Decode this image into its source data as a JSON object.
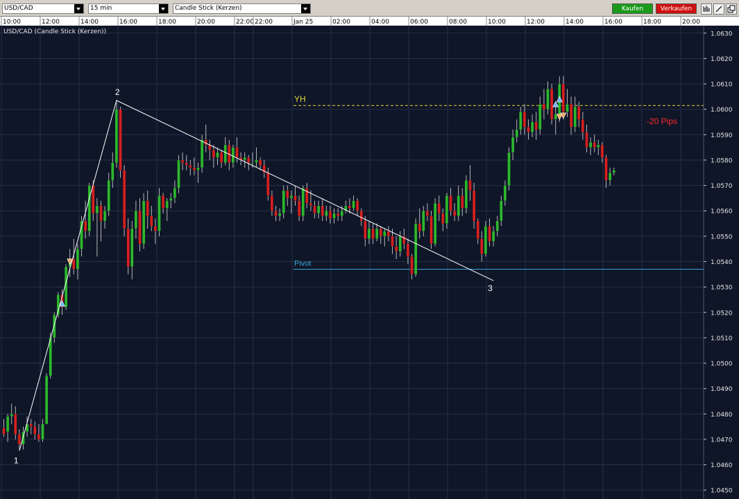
{
  "toolbar": {
    "symbol": "USD/CAD",
    "interval": "15 min",
    "chart_type": "Candle Stick (Kerzen)",
    "buy_label": "Kaufen",
    "sell_label": "Verkaufen",
    "buy_color": "#1a9a1a",
    "sell_color": "#d01010",
    "icons": [
      "bars-icon",
      "draw-line-icon",
      "detach-window-icon"
    ]
  },
  "chart_data": {
    "type": "candlestick",
    "title": "USD/CAD (Candle Stick (Kerzen))",
    "time_labels": [
      "10:00",
      "12:00",
      "14:00",
      "16:00",
      "18:00",
      "20:00",
      "22:00",
      "22:00",
      "Jan 25",
      "02:00",
      "04:00",
      "06:00",
      "08:00",
      "10:00",
      "12:00",
      "14:00",
      "16:00",
      "18:00",
      "20:00"
    ],
    "y_ticks": [
      1.045,
      1.046,
      1.047,
      1.048,
      1.049,
      1.05,
      1.051,
      1.052,
      1.053,
      1.054,
      1.055,
      1.056,
      1.057,
      1.058,
      1.059,
      1.06,
      1.061,
      1.062,
      1.063
    ],
    "ylim": [
      1.04465,
      1.06365
    ],
    "grid": true,
    "colors": {
      "up": "#2db82d",
      "down": "#d62020",
      "background": "#0f1628",
      "grid": "#253048"
    },
    "legs": [
      {
        "label": "1",
        "x_index": 4,
        "price": 1.04655
      },
      {
        "label": "2",
        "x_index": 29,
        "price": 1.06035
      },
      {
        "label": "3",
        "x_index": 126,
        "price": 1.05325
      }
    ],
    "levels": [
      {
        "label": "YH",
        "price": 1.06015,
        "color": "#e8d83a",
        "style": "dashed"
      },
      {
        "label": "Pivot",
        "price": 1.0537,
        "color": "#3aa6d6",
        "style": "solid"
      }
    ],
    "annotations": [
      {
        "text": "-20 Pips",
        "color": "#ff2a2a"
      }
    ],
    "markers": [
      {
        "type": "buy",
        "x_index": 15,
        "price": 1.05235
      },
      {
        "type": "sell",
        "x_index": 17,
        "price": 1.054
      },
      {
        "type": "buy",
        "x_index": 142,
        "price": 1.0602
      },
      {
        "type": "buy",
        "x_index": 143,
        "price": 1.0604
      },
      {
        "type": "sell",
        "x_index": 143,
        "price": 1.0597
      },
      {
        "type": "sell",
        "x_index": 144,
        "price": 1.05975
      }
    ],
    "candles": [
      [
        1.04745,
        1.0478,
        1.0471,
        1.0472
      ],
      [
        1.0473,
        1.048,
        1.0469,
        1.0479
      ],
      [
        1.0479,
        1.0484,
        1.0476,
        1.048
      ],
      [
        1.048,
        1.0483,
        1.047,
        1.0472
      ],
      [
        1.0472,
        1.0474,
        1.0466,
        1.0468
      ],
      [
        1.0468,
        1.0475,
        1.0466,
        1.0473
      ],
      [
        1.0473,
        1.0479,
        1.0471,
        1.0476
      ],
      [
        1.0476,
        1.0478,
        1.0472,
        1.0475
      ],
      [
        1.0475,
        1.0477,
        1.047,
        1.0472
      ],
      [
        1.0472,
        1.0476,
        1.0469,
        1.047
      ],
      [
        1.047,
        1.0478,
        1.0469,
        1.0476
      ],
      [
        1.0476,
        1.0496,
        1.0476,
        1.0495
      ],
      [
        1.0495,
        1.0512,
        1.0494,
        1.051
      ],
      [
        1.051,
        1.052,
        1.0508,
        1.0519
      ],
      [
        1.0519,
        1.0528,
        1.0518,
        1.0527
      ],
      [
        1.0527,
        1.0529,
        1.0519,
        1.0522
      ],
      [
        1.0522,
        1.0539,
        1.0521,
        1.0538
      ],
      [
        1.0538,
        1.0545,
        1.0534,
        1.0541
      ],
      [
        1.0541,
        1.0549,
        1.0535,
        1.0537
      ],
      [
        1.0537,
        1.0547,
        1.0533,
        1.0545
      ],
      [
        1.0545,
        1.0558,
        1.0542,
        1.0556
      ],
      [
        1.0556,
        1.0564,
        1.0549,
        1.0552
      ],
      [
        1.0552,
        1.0571,
        1.055,
        1.057
      ],
      [
        1.057,
        1.0572,
        1.0556,
        1.0559
      ],
      [
        1.0559,
        1.0565,
        1.0542,
        1.0562
      ],
      [
        1.0562,
        1.0564,
        1.0548,
        1.0556
      ],
      [
        1.0556,
        1.0562,
        1.0553,
        1.056
      ],
      [
        1.056,
        1.0575,
        1.0558,
        1.0572
      ],
      [
        1.0572,
        1.0583,
        1.0569,
        1.0579
      ],
      [
        1.0579,
        1.0603,
        1.0577,
        1.06
      ],
      [
        1.06,
        1.0601,
        1.0573,
        1.0576
      ],
      [
        1.0576,
        1.0578,
        1.055,
        1.0553
      ],
      [
        1.0553,
        1.0557,
        1.0535,
        1.0538
      ],
      [
        1.0538,
        1.0556,
        1.0533,
        1.0553
      ],
      [
        1.0553,
        1.0564,
        1.0549,
        1.056
      ],
      [
        1.056,
        1.0565,
        1.0544,
        1.0547
      ],
      [
        1.0547,
        1.0567,
        1.0545,
        1.0564
      ],
      [
        1.0564,
        1.0568,
        1.0553,
        1.0558
      ],
      [
        1.0558,
        1.0562,
        1.0552,
        1.0554
      ],
      [
        1.0554,
        1.0557,
        1.0547,
        1.0552
      ],
      [
        1.0552,
        1.0569,
        1.055,
        1.0566
      ],
      [
        1.0566,
        1.0567,
        1.0559,
        1.0561
      ],
      [
        1.0561,
        1.0565,
        1.0556,
        1.0564
      ],
      [
        1.0564,
        1.0567,
        1.0561,
        1.0565
      ],
      [
        1.0565,
        1.0572,
        1.0563,
        1.0569
      ],
      [
        1.0569,
        1.0582,
        1.0567,
        1.058
      ],
      [
        1.058,
        1.0583,
        1.0576,
        1.0579
      ],
      [
        1.0579,
        1.0582,
        1.0576,
        1.0578
      ],
      [
        1.0578,
        1.058,
        1.0574,
        1.0577
      ],
      [
        1.0577,
        1.0581,
        1.0574,
        1.0576
      ],
      [
        1.0576,
        1.0579,
        1.0571,
        1.0577
      ],
      [
        1.0577,
        1.059,
        1.0575,
        1.0588
      ],
      [
        1.0588,
        1.0594,
        1.0583,
        1.0586
      ],
      [
        1.0586,
        1.0588,
        1.058,
        1.0584
      ],
      [
        1.0584,
        1.0586,
        1.0577,
        1.0581
      ],
      [
        1.0581,
        1.0585,
        1.0578,
        1.0583
      ],
      [
        1.0583,
        1.0584,
        1.0577,
        1.0579
      ],
      [
        1.0579,
        1.0589,
        1.0578,
        1.0586
      ],
      [
        1.0586,
        1.0588,
        1.0576,
        1.0579
      ],
      [
        1.0579,
        1.0586,
        1.0577,
        1.0585
      ],
      [
        1.0585,
        1.0589,
        1.0579,
        1.0581
      ],
      [
        1.0581,
        1.0583,
        1.0578,
        1.058
      ],
      [
        1.058,
        1.0583,
        1.0577,
        1.0581
      ],
      [
        1.0581,
        1.0582,
        1.0576,
        1.0579
      ],
      [
        1.0579,
        1.0583,
        1.0577,
        1.0579
      ],
      [
        1.0579,
        1.0585,
        1.0577,
        1.058
      ],
      [
        1.058,
        1.0581,
        1.0576,
        1.0578
      ],
      [
        1.0578,
        1.058,
        1.0573,
        1.0575
      ],
      [
        1.0575,
        1.0577,
        1.0564,
        1.0566
      ],
      [
        1.0566,
        1.0568,
        1.0558,
        1.056
      ],
      [
        1.056,
        1.0562,
        1.0556,
        1.0558
      ],
      [
        1.0558,
        1.0561,
        1.0556,
        1.0559
      ],
      [
        1.0559,
        1.057,
        1.0557,
        1.0568
      ],
      [
        1.0568,
        1.057,
        1.0562,
        1.0565
      ],
      [
        1.0565,
        1.0568,
        1.0559,
        1.0566
      ],
      [
        1.0566,
        1.057,
        1.0562,
        1.0564
      ],
      [
        1.0564,
        1.0566,
        1.0556,
        1.0558
      ],
      [
        1.0558,
        1.057,
        1.0556,
        1.0569
      ],
      [
        1.0569,
        1.0571,
        1.0561,
        1.0563
      ],
      [
        1.0563,
        1.0568,
        1.056,
        1.0562
      ],
      [
        1.0562,
        1.0564,
        1.0557,
        1.0559
      ],
      [
        1.0559,
        1.0564,
        1.0557,
        1.0562
      ],
      [
        1.0562,
        1.0565,
        1.0556,
        1.0558
      ],
      [
        1.0558,
        1.0562,
        1.0556,
        1.056
      ],
      [
        1.056,
        1.0562,
        1.0555,
        1.0557
      ],
      [
        1.0557,
        1.0561,
        1.0555,
        1.0559
      ],
      [
        1.0559,
        1.0561,
        1.0556,
        1.0558
      ],
      [
        1.0558,
        1.0562,
        1.0556,
        1.056
      ],
      [
        1.056,
        1.0564,
        1.0559,
        1.0562
      ],
      [
        1.0562,
        1.0565,
        1.0559,
        1.0561
      ],
      [
        1.0561,
        1.0566,
        1.056,
        1.0564
      ],
      [
        1.0564,
        1.0565,
        1.0558,
        1.056
      ],
      [
        1.056,
        1.0561,
        1.0554,
        1.0556
      ],
      [
        1.0556,
        1.0558,
        1.0546,
        1.0549
      ],
      [
        1.0549,
        1.0556,
        1.0547,
        1.0553
      ],
      [
        1.0553,
        1.0555,
        1.0547,
        1.0549
      ],
      [
        1.0549,
        1.0555,
        1.0548,
        1.0553
      ],
      [
        1.0553,
        1.0554,
        1.0547,
        1.055
      ],
      [
        1.055,
        1.0553,
        1.0546,
        1.0552
      ],
      [
        1.0552,
        1.0554,
        1.0548,
        1.055
      ],
      [
        1.055,
        1.0553,
        1.0543,
        1.0546
      ],
      [
        1.0546,
        1.055,
        1.0541,
        1.0544
      ],
      [
        1.0544,
        1.0552,
        1.0542,
        1.055
      ],
      [
        1.055,
        1.0553,
        1.0545,
        1.0547
      ],
      [
        1.0547,
        1.0549,
        1.0539,
        1.0542
      ],
      [
        1.0542,
        1.0543,
        1.0533,
        1.0535
      ],
      [
        1.0535,
        1.0557,
        1.0534,
        1.0555
      ],
      [
        1.0555,
        1.0561,
        1.0549,
        1.0552
      ],
      [
        1.0552,
        1.0562,
        1.055,
        1.056
      ],
      [
        1.056,
        1.0563,
        1.0556,
        1.0558
      ],
      [
        1.0558,
        1.056,
        1.0545,
        1.0547
      ],
      [
        1.0547,
        1.0565,
        1.0546,
        1.0563
      ],
      [
        1.0563,
        1.0566,
        1.0556,
        1.0559
      ],
      [
        1.0559,
        1.0561,
        1.0552,
        1.0555
      ],
      [
        1.0555,
        1.0567,
        1.0553,
        1.0566
      ],
      [
        1.0566,
        1.0569,
        1.0558,
        1.056
      ],
      [
        1.056,
        1.0563,
        1.0556,
        1.0558
      ],
      [
        1.0558,
        1.057,
        1.0556,
        1.0566
      ],
      [
        1.0566,
        1.0569,
        1.0558,
        1.0561
      ],
      [
        1.0561,
        1.0574,
        1.0559,
        1.0572
      ],
      [
        1.0572,
        1.0578,
        1.0564,
        1.0568
      ],
      [
        1.0568,
        1.0571,
        1.0553,
        1.0556
      ],
      [
        1.0556,
        1.0557,
        1.0547,
        1.0549
      ],
      [
        1.0549,
        1.0552,
        1.054,
        1.0543
      ],
      [
        1.0543,
        1.0556,
        1.0542,
        1.0554
      ],
      [
        1.0554,
        1.0557,
        1.0546,
        1.0548
      ],
      [
        1.0548,
        1.0554,
        1.0546,
        1.0552
      ],
      [
        1.0552,
        1.0558,
        1.055,
        1.0556
      ],
      [
        1.0556,
        1.0566,
        1.0554,
        1.0564
      ],
      [
        1.0564,
        1.0572,
        1.0562,
        1.057
      ],
      [
        1.057,
        1.0585,
        1.0568,
        1.0583
      ],
      [
        1.0583,
        1.0592,
        1.058,
        1.0589
      ],
      [
        1.0589,
        1.0596,
        1.0587,
        1.0592
      ],
      [
        1.0592,
        1.0601,
        1.059,
        1.0599
      ],
      [
        1.0599,
        1.0602,
        1.059,
        1.0593
      ],
      [
        1.0593,
        1.0596,
        1.0588,
        1.0591
      ],
      [
        1.0591,
        1.0598,
        1.0589,
        1.0595
      ],
      [
        1.0595,
        1.0599,
        1.0588,
        1.0592
      ],
      [
        1.0592,
        1.0605,
        1.059,
        1.0602
      ],
      [
        1.0602,
        1.0608,
        1.0596,
        1.06
      ],
      [
        1.06,
        1.0611,
        1.0598,
        1.0608
      ],
      [
        1.0608,
        1.061,
        1.0594,
        1.0596
      ],
      [
        1.0596,
        1.0602,
        1.059,
        1.0598
      ],
      [
        1.0598,
        1.0613,
        1.0595,
        1.061
      ],
      [
        1.061,
        1.0613,
        1.0596,
        1.0599
      ],
      [
        1.0599,
        1.0608,
        1.0597,
        1.0602
      ],
      [
        1.0602,
        1.0605,
        1.059,
        1.0593
      ],
      [
        1.0593,
        1.0605,
        1.0591,
        1.0601
      ],
      [
        1.0601,
        1.0603,
        1.0593,
        1.0596
      ],
      [
        1.0596,
        1.0599,
        1.0588,
        1.0591
      ],
      [
        1.0591,
        1.0594,
        1.0583,
        1.0585
      ],
      [
        1.0585,
        1.0589,
        1.0582,
        1.0587
      ],
      [
        1.0587,
        1.059,
        1.0583,
        1.0585
      ],
      [
        1.0585,
        1.0588,
        1.0582,
        1.0586
      ],
      [
        1.0586,
        1.0587,
        1.0579,
        1.0581
      ],
      [
        1.0581,
        1.0582,
        1.0569,
        1.0572
      ],
      [
        1.0572,
        1.0577,
        1.057,
        1.0575
      ],
      [
        1.0575,
        1.0577,
        1.0574,
        1.0576
      ]
    ]
  }
}
